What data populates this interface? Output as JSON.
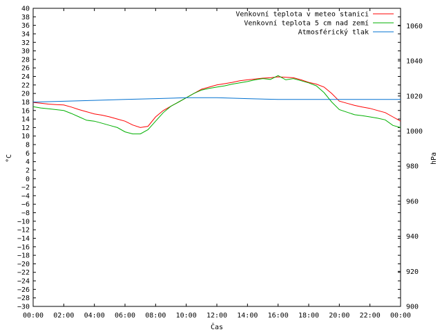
{
  "chart_data": {
    "type": "line",
    "xlabel": "Čas",
    "ylabel_left": "°C",
    "ylabel_right": "hPa",
    "grid": false,
    "legend_position": "top-right",
    "x_tick_labels": [
      "00:00",
      "02:00",
      "04:00",
      "06:00",
      "08:00",
      "10:00",
      "12:00",
      "14:00",
      "16:00",
      "18:00",
      "20:00",
      "22:00",
      "00:00"
    ],
    "x_hours": [
      0,
      2,
      4,
      6,
      8,
      10,
      12,
      14,
      16,
      18,
      20,
      22,
      24
    ],
    "ylim_left": [
      -30,
      40
    ],
    "yticks_left": [
      -30,
      -28,
      -26,
      -24,
      -22,
      -20,
      -18,
      -16,
      -14,
      -12,
      -10,
      -8,
      -6,
      -4,
      -2,
      0,
      2,
      4,
      6,
      8,
      10,
      12,
      14,
      16,
      18,
      20,
      22,
      24,
      26,
      28,
      30,
      32,
      34,
      36,
      38,
      40
    ],
    "ylim_right": [
      900,
      1070
    ],
    "yticks_right": [
      900,
      920,
      940,
      960,
      980,
      1000,
      1020,
      1040,
      1060
    ],
    "series": [
      {
        "name": "Venkovní teplota v meteo stanici",
        "color": "#ff0000",
        "axis": "left",
        "x": [
          0,
          0.5,
          1,
          1.5,
          2,
          2.5,
          3,
          3.5,
          4,
          4.5,
          5,
          5.5,
          6,
          6.5,
          7,
          7.5,
          8,
          8.5,
          9,
          9.5,
          10,
          10.5,
          11,
          11.5,
          12,
          12.5,
          13,
          13.5,
          14,
          14.5,
          15,
          15.5,
          16,
          16.5,
          17,
          17.5,
          18,
          18.5,
          19,
          19.5,
          20,
          20.5,
          21,
          21.5,
          22,
          22.5,
          23,
          23.5,
          24
        ],
        "y": [
          17.9,
          17.7,
          17.5,
          17.4,
          17.3,
          16.8,
          16.2,
          15.7,
          15.2,
          14.9,
          14.5,
          14.0,
          13.5,
          12.6,
          12.0,
          12.3,
          14.5,
          16.0,
          17.0,
          18.0,
          19.0,
          20.0,
          21.0,
          21.5,
          22.0,
          22.3,
          22.6,
          23.0,
          23.2,
          23.4,
          23.6,
          23.7,
          23.9,
          23.8,
          23.7,
          23.2,
          22.6,
          22.2,
          21.5,
          20.0,
          18.2,
          17.7,
          17.2,
          16.8,
          16.5,
          16.0,
          15.5,
          14.5,
          13.5
        ]
      },
      {
        "name": "Venkovní teplota 5 cm nad zemí",
        "color": "#00b000",
        "axis": "left",
        "x": [
          0,
          0.5,
          1,
          1.5,
          2,
          2.5,
          3,
          3.5,
          4,
          4.5,
          5,
          5.5,
          6,
          6.5,
          7,
          7.5,
          8,
          8.5,
          9,
          9.5,
          10,
          10.5,
          11,
          11.5,
          12,
          12.5,
          13,
          13.5,
          14,
          14.5,
          15,
          15.5,
          16,
          16.5,
          17,
          17.5,
          18,
          18.5,
          19,
          19.5,
          20,
          20.5,
          21,
          21.5,
          22,
          22.5,
          23,
          23.5,
          24
        ],
        "y": [
          16.9,
          16.6,
          16.4,
          16.2,
          16.0,
          15.3,
          14.5,
          13.7,
          13.5,
          13.0,
          12.5,
          12.0,
          11.0,
          10.5,
          10.5,
          11.5,
          13.5,
          15.5,
          17.0,
          18.0,
          19.0,
          20.0,
          20.8,
          21.2,
          21.5,
          21.8,
          22.2,
          22.5,
          22.8,
          23.2,
          23.5,
          23.3,
          24.2,
          23.2,
          23.5,
          23.0,
          22.5,
          21.8,
          20.2,
          18.0,
          16.2,
          15.6,
          15.0,
          14.8,
          14.5,
          14.2,
          13.8,
          12.5,
          12.0
        ]
      },
      {
        "name": "Atmosférický tlak",
        "color": "#0070d0",
        "axis": "right",
        "x": [
          0,
          2,
          4,
          6,
          8,
          10,
          12,
          14,
          16,
          18,
          20,
          22,
          24
        ],
        "y": [
          1016.5,
          1017,
          1017.5,
          1018,
          1018.5,
          1019,
          1019,
          1018.5,
          1018,
          1018,
          1018,
          1018,
          1018
        ]
      }
    ]
  }
}
